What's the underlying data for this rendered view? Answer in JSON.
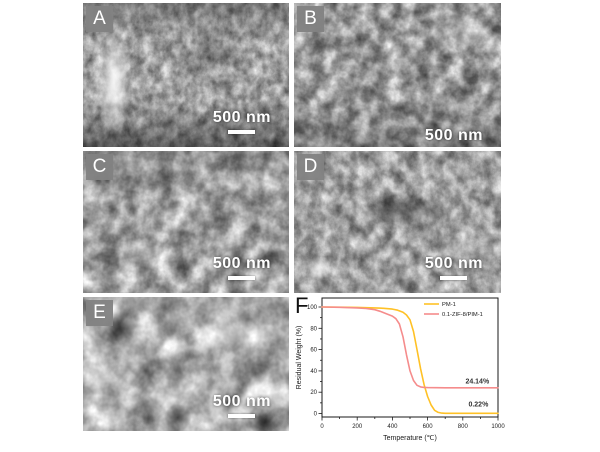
{
  "figure": {
    "panels": [
      {
        "label": "A",
        "scale_text": "500 nm"
      },
      {
        "label": "B",
        "scale_text": "500 nm"
      },
      {
        "label": "C",
        "scale_text": "500 nm"
      },
      {
        "label": "D",
        "scale_text": "500 nm"
      },
      {
        "label": "E",
        "scale_text": "500 nm"
      }
    ],
    "chart_label": "F",
    "label_box_color": "#828282",
    "scale_bar_color": "#ffffff"
  },
  "chart_data": {
    "type": "line",
    "title": "",
    "xlabel": "Temperature (℃)",
    "ylabel": "Residual Weight (%)",
    "xlim": [
      0,
      1000
    ],
    "ylim": [
      0,
      100
    ],
    "xticks": [
      0,
      200,
      400,
      600,
      800,
      1000
    ],
    "yticks": [
      0,
      20,
      40,
      60,
      80,
      100
    ],
    "xminor": 100,
    "yminor": 10,
    "grid": false,
    "legend_position": "top-right",
    "series": [
      {
        "name": "PM-1",
        "color": "#FFC125",
        "x": [
          0,
          100,
          200,
          300,
          350,
          400,
          430,
          460,
          480,
          500,
          520,
          540,
          560,
          580,
          600,
          620,
          640,
          660,
          680,
          700,
          800,
          900,
          1000
        ],
        "y": [
          100,
          99.8,
          99.6,
          99.2,
          98.8,
          98,
          97,
          95,
          92.5,
          88,
          77,
          60,
          42,
          27,
          16,
          8,
          3,
          1,
          0.4,
          0.22,
          0.22,
          0.22,
          0.22
        ]
      },
      {
        "name": "0.1-ZIF-8/PIM-1",
        "color": "#F58C8C",
        "x": [
          0,
          100,
          200,
          250,
          300,
          330,
          360,
          380,
          400,
          420,
          440,
          460,
          480,
          500,
          520,
          540,
          560,
          580,
          600,
          650,
          700,
          800,
          900,
          1000
        ],
        "y": [
          100,
          99.7,
          99.2,
          98.6,
          97.5,
          96,
          94,
          92.8,
          91.5,
          89,
          84,
          72,
          55,
          40,
          31,
          26.5,
          25,
          24.5,
          24.3,
          24.2,
          24.14,
          24.14,
          24.14,
          24.14
        ]
      }
    ],
    "annotations": [
      {
        "text": "24.14%",
        "x": 950,
        "y": 28
      },
      {
        "text": "0.22%",
        "x": 945,
        "y": 6.5
      }
    ]
  }
}
